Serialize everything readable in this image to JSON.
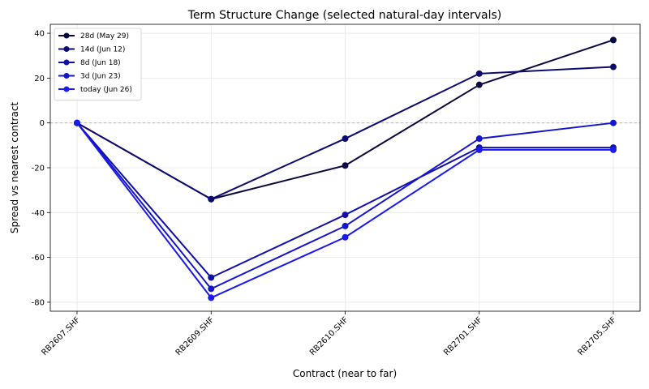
{
  "chart_data": {
    "type": "line",
    "title": "Term Structure Change (selected natural-day intervals)",
    "xlabel": "Contract (near to far)",
    "ylabel": "Spread vs nearest contract",
    "categories": [
      "RB2607.SHF",
      "RB2609.SHF",
      "RB2610.SHF",
      "RB2701.SHF",
      "RB2705.SHF"
    ],
    "ylim": [
      -84,
      44
    ],
    "yticks": [
      -80,
      -60,
      -40,
      -20,
      0,
      20,
      40
    ],
    "grid": true,
    "zero_line": true,
    "legend_position": "top-left",
    "series": [
      {
        "name": "28d (May 29)",
        "color": "#0a0a40",
        "values": [
          0,
          -34,
          -19,
          17,
          37
        ]
      },
      {
        "name": "14d (Jun 12)",
        "color": "#0b0b70",
        "values": [
          0,
          -34,
          -7,
          22,
          25
        ]
      },
      {
        "name": "8d (Jun 18)",
        "color": "#1010a8",
        "values": [
          0,
          -69,
          -41,
          -11,
          -11
        ]
      },
      {
        "name": "3d (Jun 23)",
        "color": "#1515cc",
        "values": [
          0,
          -74,
          -46,
          -7,
          0
        ]
      },
      {
        "name": "today (Jun 26)",
        "color": "#1a1aee",
        "values": [
          0,
          -78,
          -51,
          -12,
          -12
        ]
      }
    ]
  }
}
